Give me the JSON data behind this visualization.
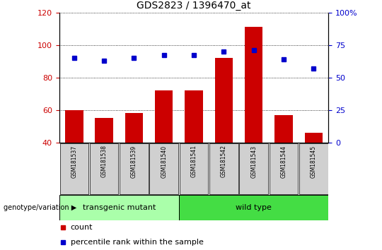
{
  "title": "GDS2823 / 1396470_at",
  "samples": [
    "GSM181537",
    "GSM181538",
    "GSM181539",
    "GSM181540",
    "GSM181541",
    "GSM181542",
    "GSM181543",
    "GSM181544",
    "GSM181545"
  ],
  "count_values": [
    60,
    55,
    58,
    72,
    72,
    92,
    111,
    57,
    46
  ],
  "percentile_values": [
    65,
    63,
    65,
    67,
    67,
    70,
    71,
    64,
    57
  ],
  "bar_color": "#cc0000",
  "dot_color": "#0000cc",
  "ylim_left": [
    40,
    120
  ],
  "ylim_right": [
    0,
    100
  ],
  "yticks_left": [
    40,
    60,
    80,
    100,
    120
  ],
  "yticks_right": [
    0,
    25,
    50,
    75,
    100
  ],
  "yticklabels_right": [
    "0",
    "25",
    "50",
    "75",
    "100%"
  ],
  "groups": [
    {
      "label": "transgenic mutant",
      "start": 0,
      "end": 3,
      "color": "#aaffaa"
    },
    {
      "label": "wild type",
      "start": 4,
      "end": 8,
      "color": "#44dd44"
    }
  ],
  "group_label": "genotype/variation",
  "legend_count_label": "count",
  "legend_percentile_label": "percentile rank within the sample",
  "bar_width": 0.6,
  "baseline": 40,
  "title_color": "#000000",
  "left_axis_color": "#cc0000",
  "right_axis_color": "#0000cc",
  "figsize": [
    5.4,
    3.54
  ],
  "dpi": 100
}
